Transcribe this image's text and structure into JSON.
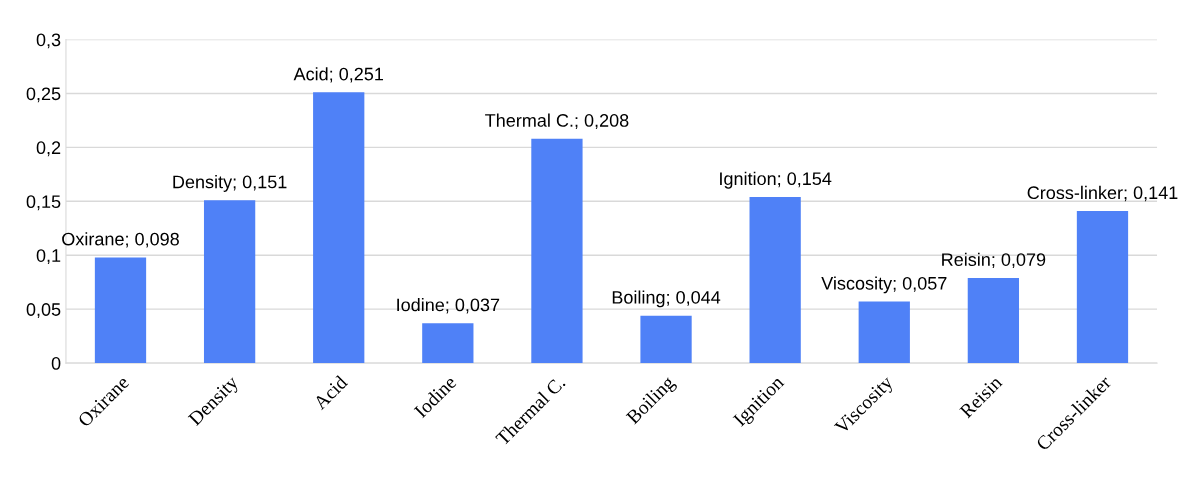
{
  "chart_data": {
    "type": "bar",
    "categories": [
      "Oxirane",
      "Density",
      "Acid",
      "Iodine",
      "Thermal C.",
      "Boiling",
      "Ignition",
      "Viscosity",
      "Reisin",
      "Cross-linker"
    ],
    "values": [
      0.098,
      0.151,
      0.251,
      0.037,
      0.208,
      0.044,
      0.154,
      0.057,
      0.079,
      0.141
    ],
    "value_labels": [
      "Oxirane; 0,098",
      "Density; 0,151",
      "Acid; 0,251",
      "Iodine; 0,037",
      "Thermal C.; 0,208",
      "Boiling; 0,044",
      "Ignition; 0,154",
      "Viscosity; 0,057",
      "Reisin; 0,079",
      "Cross-linker; 0,141"
    ],
    "color": "#4f81f7",
    "ylim": [
      0,
      0.3
    ],
    "yticks": [
      0,
      {
        "value": 0.05,
        "label": "0,05"
      },
      {
        "value": 0.1,
        "label": "0,1"
      },
      {
        "value": 0.15,
        "label": "0,15"
      },
      {
        "value": 0.2,
        "label": "0,2"
      },
      {
        "value": 0.25,
        "label": "0,25"
      },
      {
        "value": 0.3,
        "label": "0,3"
      }
    ],
    "grid": "y"
  }
}
